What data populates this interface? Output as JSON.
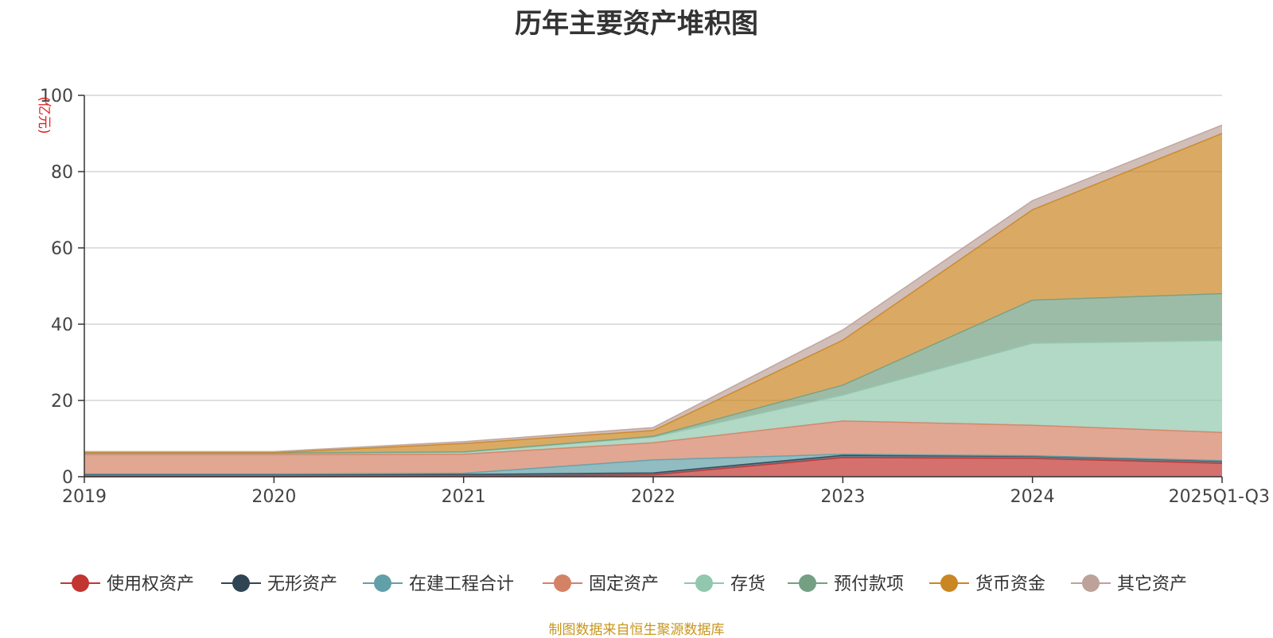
{
  "chart_data": {
    "type": "area",
    "stacked": true,
    "title": "历年主要资产堆积图",
    "ylabel": "(亿元)",
    "xlabel": "",
    "categories": [
      "2019",
      "2020",
      "2021",
      "2022",
      "2023",
      "2024",
      "2025Q1-Q3"
    ],
    "ylim": [
      0,
      100
    ],
    "yticks": [
      0,
      20,
      40,
      60,
      80,
      100
    ],
    "grid": true,
    "legend_position": "bottom",
    "series": [
      {
        "name": "使用权资产",
        "color": "#c23531",
        "values": [
          0.0,
          0.0,
          0.1,
          0.5,
          5.0,
          4.8,
          3.5
        ]
      },
      {
        "name": "无形资产",
        "color": "#2f4554",
        "values": [
          0.6,
          0.6,
          0.5,
          0.5,
          0.6,
          0.6,
          0.6
        ]
      },
      {
        "name": "在建工程合计",
        "color": "#61a0a8",
        "values": [
          0.1,
          0.1,
          0.3,
          3.4,
          0.3,
          0.1,
          0.1
        ]
      },
      {
        "name": "固定资产",
        "color": "#d48265",
        "values": [
          5.1,
          5.1,
          5.0,
          4.5,
          8.7,
          8.0,
          7.4
        ]
      },
      {
        "name": "存货",
        "color": "#91c7ae",
        "values": [
          0.3,
          0.3,
          0.5,
          1.5,
          6.8,
          21.5,
          24.1
        ]
      },
      {
        "name": "预付款项",
        "color": "#749f83",
        "values": [
          0.1,
          0.1,
          0.1,
          0.2,
          2.6,
          11.3,
          12.3
        ]
      },
      {
        "name": "货币资金",
        "color": "#ca8622",
        "values": [
          0.1,
          0.1,
          2.2,
          1.5,
          11.8,
          23.7,
          42.0
        ]
      },
      {
        "name": "其它资产",
        "color": "#bda29a",
        "values": [
          0.3,
          0.3,
          0.5,
          0.8,
          2.7,
          2.4,
          2.2
        ]
      }
    ]
  },
  "footer": {
    "source": "制图数据来自恒生聚源数据库"
  }
}
